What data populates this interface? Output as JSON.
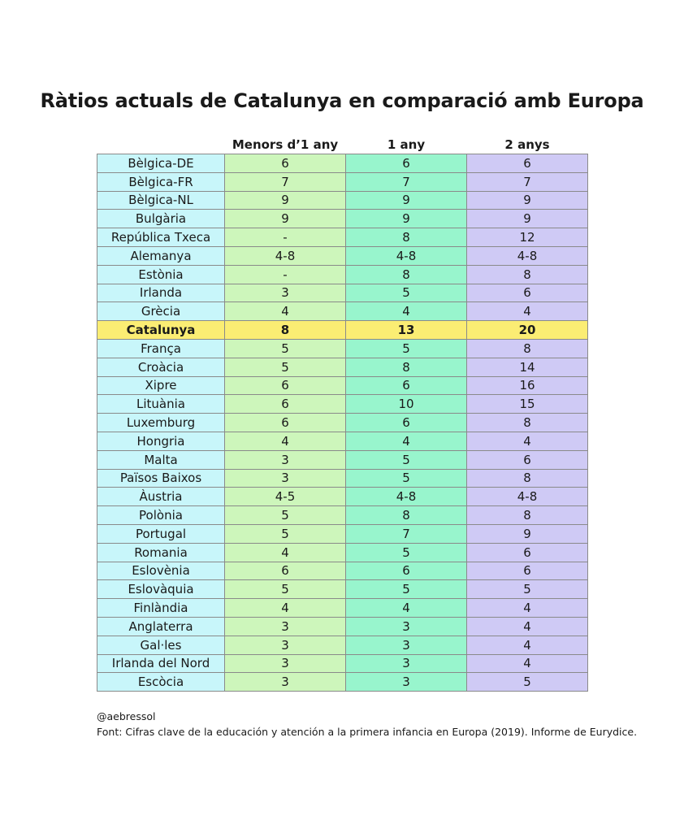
{
  "title": "Ràtios actuals de Catalunya en comparació amb Europa",
  "table": {
    "headers": [
      "",
      "Menors d’1 any",
      "1 any",
      "2 anys"
    ],
    "highlight_country": "Catalunya",
    "rows": [
      {
        "country": "Bèlgica-DE",
        "under1": "6",
        "age1": "6",
        "age2": "6"
      },
      {
        "country": "Bèlgica-FR",
        "under1": "7",
        "age1": "7",
        "age2": "7"
      },
      {
        "country": "Bèlgica-NL",
        "under1": "9",
        "age1": "9",
        "age2": "9"
      },
      {
        "country": "Bulgària",
        "under1": "9",
        "age1": "9",
        "age2": "9"
      },
      {
        "country": "República Txeca",
        "under1": "-",
        "age1": "8",
        "age2": "12"
      },
      {
        "country": "Alemanya",
        "under1": "4-8",
        "age1": "4-8",
        "age2": "4-8"
      },
      {
        "country": "Estònia",
        "under1": "-",
        "age1": "8",
        "age2": "8"
      },
      {
        "country": "Irlanda",
        "under1": "3",
        "age1": "5",
        "age2": "6"
      },
      {
        "country": "Grècia",
        "under1": "4",
        "age1": "4",
        "age2": "4"
      },
      {
        "country": "Catalunya",
        "under1": "8",
        "age1": "13",
        "age2": "20"
      },
      {
        "country": "França",
        "under1": "5",
        "age1": "5",
        "age2": "8"
      },
      {
        "country": "Croàcia",
        "under1": "5",
        "age1": "8",
        "age2": "14"
      },
      {
        "country": "Xipre",
        "under1": "6",
        "age1": "6",
        "age2": "16"
      },
      {
        "country": "Lituània",
        "under1": "6",
        "age1": "10",
        "age2": "15"
      },
      {
        "country": "Luxemburg",
        "under1": "6",
        "age1": "6",
        "age2": "8"
      },
      {
        "country": "Hongria",
        "under1": "4",
        "age1": "4",
        "age2": "4"
      },
      {
        "country": "Malta",
        "under1": "3",
        "age1": "5",
        "age2": "6"
      },
      {
        "country": "Països Baixos",
        "under1": "3",
        "age1": "5",
        "age2": "8"
      },
      {
        "country": "Àustria",
        "under1": "4-5",
        "age1": "4-8",
        "age2": "4-8"
      },
      {
        "country": "Polònia",
        "under1": "5",
        "age1": "8",
        "age2": "8"
      },
      {
        "country": "Portugal",
        "under1": "5",
        "age1": "7",
        "age2": "9"
      },
      {
        "country": "Romania",
        "under1": "4",
        "age1": "5",
        "age2": "6"
      },
      {
        "country": "Eslovènia",
        "under1": "6",
        "age1": "6",
        "age2": "6"
      },
      {
        "country": "Eslovàquia",
        "under1": "5",
        "age1": "5",
        "age2": "5"
      },
      {
        "country": "Finlàndia",
        "under1": "4",
        "age1": "4",
        "age2": "4"
      },
      {
        "country": "Anglaterra",
        "under1": "3",
        "age1": "3",
        "age2": "4"
      },
      {
        "country": "Gal·les",
        "under1": "3",
        "age1": "3",
        "age2": "4"
      },
      {
        "country": "Irlanda del Nord",
        "under1": "3",
        "age1": "3",
        "age2": "4"
      },
      {
        "country": "Escòcia",
        "under1": "3",
        "age1": "3",
        "age2": "5"
      }
    ]
  },
  "footer": {
    "handle": "@aebressol",
    "source": "Font: Cifras clave de la educación y atención a la primera infancia en Europa (2019). Informe de Eurydice."
  },
  "colors": {
    "country_column": "#c8f6fa",
    "under1_column": "#cdf6bb",
    "age1_column": "#98f5cd",
    "age2_column": "#cfcaf5",
    "highlight_row": "#fbed73"
  }
}
